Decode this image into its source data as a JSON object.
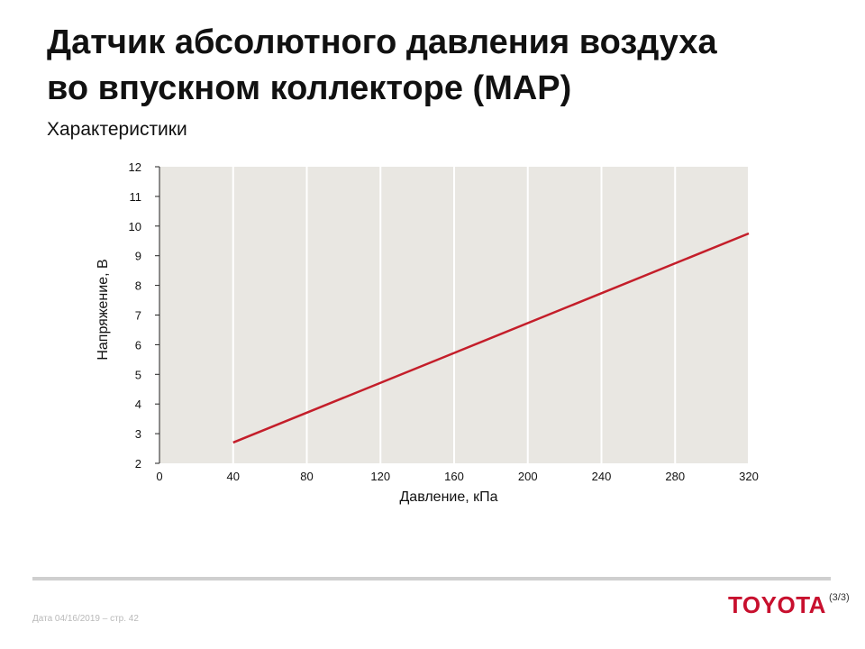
{
  "slide": {
    "title_line1": "Датчик абсолютного давления воздуха",
    "title_line2": "во впускном коллекторе (MAP)",
    "subtitle": "Характеристики"
  },
  "footer": {
    "text": "Дата 04/16/2019 – стр.  42",
    "brand": "TOYOTA",
    "page_counter": "(3/3)"
  },
  "colors": {
    "line": "#c41e2a",
    "plot_bg": "#e9e7e2",
    "grid": "#ffffff",
    "brand": "#c8102e"
  },
  "chart_data": {
    "type": "line",
    "title": "",
    "xlabel": "Давление, кПа",
    "ylabel": "Напряжение, В",
    "xlim": [
      0,
      320
    ],
    "ylim": [
      2,
      12
    ],
    "xticks": [
      0,
      40,
      80,
      120,
      160,
      200,
      240,
      280,
      320
    ],
    "yticks": [
      2,
      3,
      4,
      5,
      6,
      7,
      8,
      9,
      10,
      11,
      12
    ],
    "grid": true,
    "series": [
      {
        "x": [
          40,
          320
        ],
        "y": [
          2.7,
          9.75
        ]
      }
    ]
  }
}
